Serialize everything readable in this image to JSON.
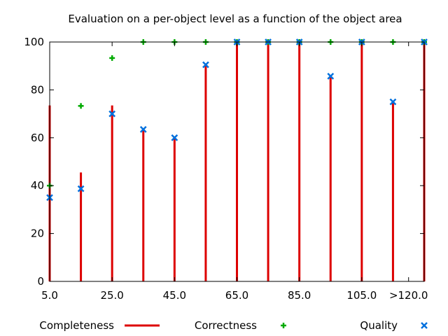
{
  "chart_data": {
    "type": "scatter",
    "title": "Evaluation on a per-object level as a function of the object area",
    "xlabel": "",
    "ylabel": "",
    "x_range": [
      5,
      125
    ],
    "ylim": [
      0,
      100
    ],
    "y_ticks": [
      "0",
      "20",
      "40",
      "60",
      "80",
      "100"
    ],
    "x_tick_values": [
      5,
      25,
      45,
      65,
      85,
      105,
      120
    ],
    "x_tick_labels": [
      "5.0",
      "25.0",
      "45.0",
      "65.0",
      "85.0",
      "105.0",
      ">120.0"
    ],
    "x": [
      5,
      15,
      25,
      35,
      45,
      55,
      65,
      75,
      85,
      95,
      105,
      115,
      125
    ],
    "grid": false,
    "legend_position": "bottom",
    "series": [
      {
        "name": "Completeness",
        "style": "impulses",
        "color": "#dd0000",
        "values": [
          73.5,
          45.5,
          73.5,
          63.5,
          60,
          90.5,
          100,
          100,
          100,
          85.7,
          100,
          75,
          100
        ]
      },
      {
        "name": "Correctness",
        "style": "plus",
        "color": "#00aa00",
        "values": [
          40,
          73.3,
          93.3,
          100,
          100,
          100,
          100,
          100,
          100,
          100,
          100,
          100,
          100
        ]
      },
      {
        "name": "Quality",
        "style": "cross",
        "color": "#0070dd",
        "values": [
          35,
          38.7,
          70,
          63.5,
          60,
          90.5,
          100,
          100,
          100,
          85.7,
          100,
          75,
          100
        ]
      }
    ]
  }
}
